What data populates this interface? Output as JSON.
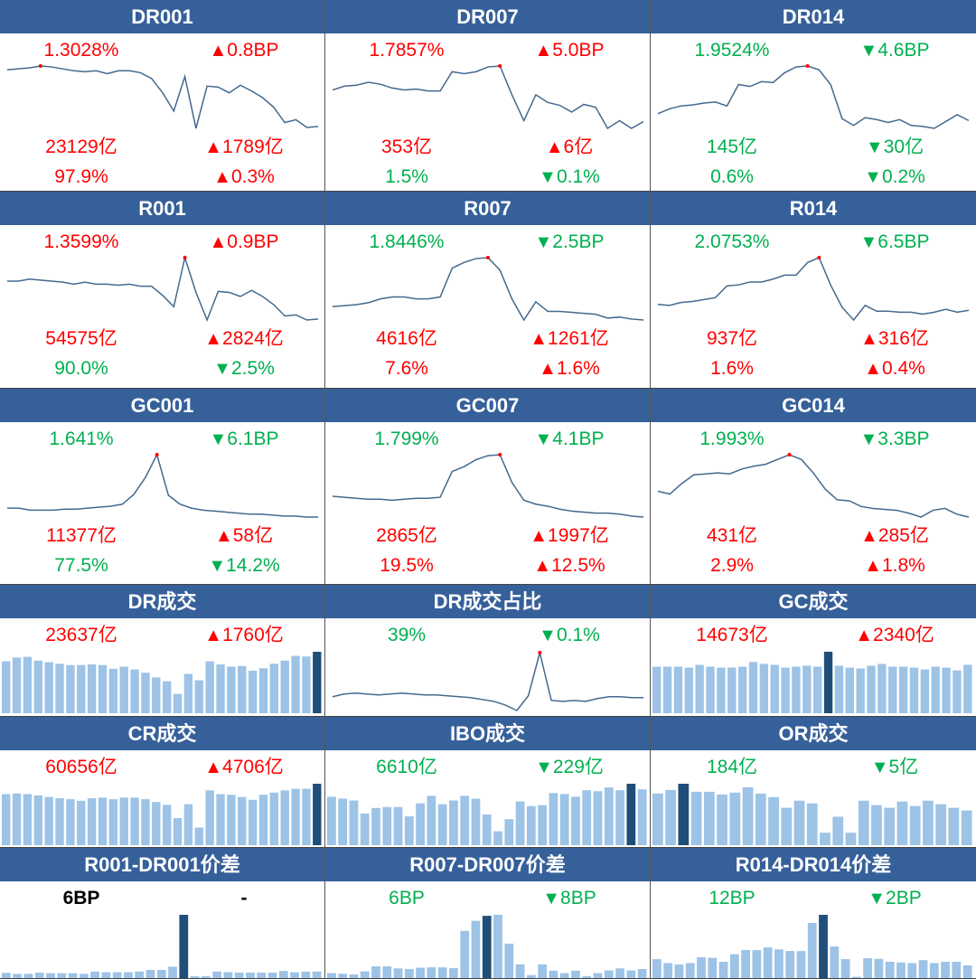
{
  "colors": {
    "header": "#36609a",
    "up": "#ff0000",
    "down": "#00b050",
    "line": "#44698f",
    "bar": "#9dc3e6",
    "bar_highlight": "#1f4e79",
    "marker": "#ff0000"
  },
  "panels": [
    {
      "title": "DR001",
      "type": "line",
      "rows": [
        {
          "left": "1.3028%",
          "lc": "up",
          "arrow": "▲",
          "right": "0.8BP",
          "rc": "up"
        },
        {
          "left": "23129亿",
          "lc": "up",
          "arrow": "▲",
          "right": "1789亿",
          "rc": "up"
        },
        {
          "left": "97.9%",
          "lc": "up",
          "arrow": "▲",
          "right": "0.3%",
          "rc": "up"
        }
      ]
    },
    {
      "title": "DR007",
      "type": "line",
      "rows": [
        {
          "left": "1.7857%",
          "lc": "up",
          "arrow": "▲",
          "right": "5.0BP",
          "rc": "up"
        },
        {
          "left": "353亿",
          "lc": "up",
          "arrow": "▲",
          "right": "6亿",
          "rc": "up"
        },
        {
          "left": "1.5%",
          "lc": "down",
          "arrow": "▼",
          "right": "0.1%",
          "rc": "down"
        }
      ]
    },
    {
      "title": "DR014",
      "type": "line",
      "rows": [
        {
          "left": "1.9524%",
          "lc": "down",
          "arrow": "▼",
          "right": "4.6BP",
          "rc": "down"
        },
        {
          "left": "145亿",
          "lc": "down",
          "arrow": "▼",
          "right": "30亿",
          "rc": "down"
        },
        {
          "left": "0.6%",
          "lc": "down",
          "arrow": "▼",
          "right": "0.2%",
          "rc": "down"
        }
      ]
    },
    {
      "title": "R001",
      "type": "line",
      "rows": [
        {
          "left": "1.3599%",
          "lc": "up",
          "arrow": "▲",
          "right": "0.9BP",
          "rc": "up"
        },
        {
          "left": "54575亿",
          "lc": "up",
          "arrow": "▲",
          "right": "2824亿",
          "rc": "up"
        },
        {
          "left": "90.0%",
          "lc": "down",
          "arrow": "▼",
          "right": "2.5%",
          "rc": "down"
        }
      ]
    },
    {
      "title": "R007",
      "type": "line",
      "rows": [
        {
          "left": "1.8446%",
          "lc": "down",
          "arrow": "▼",
          "right": "2.5BP",
          "rc": "down"
        },
        {
          "left": "4616亿",
          "lc": "up",
          "arrow": "▲",
          "right": "1261亿",
          "rc": "up"
        },
        {
          "left": "7.6%",
          "lc": "up",
          "arrow": "▲",
          "right": "1.6%",
          "rc": "up"
        }
      ]
    },
    {
      "title": "R014",
      "type": "line",
      "rows": [
        {
          "left": "2.0753%",
          "lc": "down",
          "arrow": "▼",
          "right": "6.5BP",
          "rc": "down"
        },
        {
          "left": "937亿",
          "lc": "up",
          "arrow": "▲",
          "right": "316亿",
          "rc": "up"
        },
        {
          "left": "1.6%",
          "lc": "up",
          "arrow": "▲",
          "right": "0.4%",
          "rc": "up"
        }
      ]
    },
    {
      "title": "GC001",
      "type": "line",
      "rows": [
        {
          "left": "1.641%",
          "lc": "down",
          "arrow": "▼",
          "right": "6.1BP",
          "rc": "down"
        },
        {
          "left": "11377亿",
          "lc": "up",
          "arrow": "▲",
          "right": "58亿",
          "rc": "up"
        },
        {
          "left": "77.5%",
          "lc": "down",
          "arrow": "▼",
          "right": "14.2%",
          "rc": "down"
        }
      ]
    },
    {
      "title": "GC007",
      "type": "line",
      "rows": [
        {
          "left": "1.799%",
          "lc": "down",
          "arrow": "▼",
          "right": "4.1BP",
          "rc": "down"
        },
        {
          "left": "2865亿",
          "lc": "up",
          "arrow": "▲",
          "right": "1997亿",
          "rc": "up"
        },
        {
          "left": "19.5%",
          "lc": "up",
          "arrow": "▲",
          "right": "12.5%",
          "rc": "up"
        }
      ]
    },
    {
      "title": "GC014",
      "type": "line",
      "rows": [
        {
          "left": "1.993%",
          "lc": "down",
          "arrow": "▼",
          "right": "3.3BP",
          "rc": "down"
        },
        {
          "left": "431亿",
          "lc": "up",
          "arrow": "▲",
          "right": "285亿",
          "rc": "up"
        },
        {
          "left": "2.9%",
          "lc": "up",
          "arrow": "▲",
          "right": "1.8%",
          "rc": "up"
        }
      ]
    },
    {
      "title": "DR成交",
      "type": "bar",
      "rows": [
        {
          "left": "23637亿",
          "lc": "up",
          "arrow": "▲",
          "right": "1760亿",
          "rc": "up"
        }
      ]
    },
    {
      "title": "DR成交占比",
      "type": "line",
      "rows": [
        {
          "left": "39%",
          "lc": "down",
          "arrow": "▼",
          "right": "0.1%",
          "rc": "down"
        }
      ]
    },
    {
      "title": "GC成交",
      "type": "bar",
      "rows": [
        {
          "left": "14673亿",
          "lc": "up",
          "arrow": "▲",
          "right": "2340亿",
          "rc": "up"
        }
      ]
    },
    {
      "title": "CR成交",
      "type": "bar",
      "rows": [
        {
          "left": "60656亿",
          "lc": "up",
          "arrow": "▲",
          "right": "4706亿",
          "rc": "up"
        }
      ]
    },
    {
      "title": "IBO成交",
      "type": "bar",
      "rows": [
        {
          "left": "6610亿",
          "lc": "down",
          "arrow": "▼",
          "right": "229亿",
          "rc": "down"
        }
      ]
    },
    {
      "title": "OR成交",
      "type": "bar",
      "rows": [
        {
          "left": "184亿",
          "lc": "down",
          "arrow": "▼",
          "right": "5亿",
          "rc": "down"
        }
      ]
    },
    {
      "title": "R001-DR001价差",
      "type": "bar",
      "rows": [
        {
          "left": "6BP",
          "lc": "neutral",
          "arrow": "",
          "right": "-",
          "rc": "neutral"
        }
      ]
    },
    {
      "title": "R007-DR007价差",
      "type": "bar",
      "rows": [
        {
          "left": "6BP",
          "lc": "down",
          "arrow": "▼",
          "right": "8BP",
          "rc": "down"
        }
      ]
    },
    {
      "title": "R014-DR014价差",
      "type": "bar",
      "rows": [
        {
          "left": "12BP",
          "lc": "down",
          "arrow": "▼",
          "right": "2BP",
          "rc": "down"
        }
      ]
    }
  ],
  "chart_data": [
    {
      "type": "line",
      "title": "DR001",
      "values": [
        66,
        67,
        68,
        70,
        69,
        67,
        65,
        64,
        65,
        62,
        65,
        65,
        63,
        57,
        42,
        23,
        59,
        5,
        49,
        48,
        42,
        50,
        44,
        37,
        27,
        11,
        14,
        6,
        7
      ]
    },
    {
      "type": "line",
      "title": "DR007",
      "values": [
        45,
        49,
        50,
        53,
        51,
        47,
        45,
        46,
        44,
        44,
        64,
        62,
        64,
        69,
        70,
        40,
        13,
        40,
        32,
        29,
        22,
        30,
        27,
        5,
        13,
        5,
        12
      ]
    },
    {
      "type": "line",
      "title": "DR014",
      "values": [
        20,
        25,
        28,
        29,
        31,
        32,
        28,
        50,
        48,
        53,
        52,
        62,
        68,
        69,
        65,
        50,
        15,
        8,
        16,
        14,
        11,
        14,
        8,
        7,
        5,
        12,
        19,
        13
      ]
    },
    {
      "type": "line",
      "title": "R001",
      "values": [
        43,
        43,
        45,
        44,
        43,
        42,
        40,
        42,
        40,
        40,
        39,
        40,
        38,
        38,
        29,
        18,
        66,
        32,
        5,
        33,
        32,
        28,
        34,
        28,
        20,
        9,
        10,
        5,
        6
      ]
    },
    {
      "type": "line",
      "title": "R007",
      "values": [
        19,
        20,
        21,
        23,
        27,
        29,
        29,
        27,
        27,
        29,
        59,
        65,
        69,
        70,
        57,
        27,
        5,
        24,
        14,
        14,
        13,
        12,
        11,
        7,
        8,
        6,
        5
      ]
    },
    {
      "type": "line",
      "title": "R014",
      "values": [
        21,
        20,
        23,
        24,
        26,
        28,
        40,
        41,
        44,
        44,
        47,
        51,
        51,
        64,
        69,
        41,
        18,
        5,
        20,
        14,
        14,
        13,
        13,
        11,
        13,
        16,
        13,
        15
      ]
    },
    {
      "type": "line",
      "title": "GC001",
      "values": [
        14,
        14,
        12,
        12,
        12,
        13,
        13,
        14,
        15,
        16,
        18,
        28,
        45,
        68,
        27,
        18,
        14,
        12,
        11,
        10,
        9,
        8,
        8,
        7,
        6,
        6,
        5,
        5
      ]
    },
    {
      "type": "line",
      "title": "GC007",
      "values": [
        26,
        25,
        24,
        23,
        23,
        22,
        23,
        24,
        24,
        25,
        51,
        56,
        63,
        67,
        68,
        40,
        22,
        18,
        16,
        13,
        11,
        10,
        9,
        9,
        8,
        6,
        5
      ]
    },
    {
      "type": "line",
      "title": "GC014",
      "values": [
        32,
        29,
        40,
        49,
        50,
        51,
        50,
        55,
        58,
        60,
        65,
        70,
        65,
        51,
        34,
        23,
        22,
        16,
        14,
        13,
        12,
        9,
        5,
        12,
        14,
        8,
        5
      ]
    },
    {
      "type": "bar",
      "title": "DR成交",
      "highlight": 29,
      "values": [
        164,
        176,
        178,
        166,
        161,
        156,
        152,
        152,
        154,
        152,
        140,
        147,
        138,
        128,
        113,
        101,
        61,
        124,
        104,
        164,
        154,
        147,
        149,
        134,
        142,
        156,
        166,
        181,
        179,
        194
      ]
    },
    {
      "type": "line",
      "title": "DR成交占比",
      "values": [
        20,
        23,
        24,
        23,
        22,
        23,
        24,
        23,
        22,
        22,
        21,
        20,
        19,
        17,
        15,
        11,
        5,
        21,
        68,
        16,
        15,
        16,
        15,
        18,
        20,
        20,
        19,
        19
      ]
    },
    {
      "type": "bar",
      "title": "GC成交",
      "highlight": 16,
      "values": [
        50,
        50,
        50,
        49,
        52,
        50,
        49,
        49,
        50,
        55,
        53,
        52,
        49,
        50,
        51,
        50,
        66,
        51,
        49,
        48,
        51,
        53,
        50,
        50,
        49,
        47,
        50,
        49,
        46,
        52
      ]
    },
    {
      "type": "bar",
      "title": "CR成交",
      "highlight": 29,
      "values": [
        162,
        164,
        162,
        158,
        153,
        149,
        146,
        141,
        149,
        151,
        146,
        151,
        151,
        146,
        137,
        128,
        86,
        130,
        56,
        174,
        162,
        160,
        153,
        144,
        160,
        167,
        174,
        179,
        179,
        195
      ]
    },
    {
      "type": "bar",
      "title": "IBO成交",
      "highlight": 27,
      "values": [
        52,
        50,
        48,
        34,
        40,
        41,
        41,
        31,
        45,
        53,
        44,
        48,
        53,
        50,
        33,
        15,
        28,
        47,
        42,
        43,
        56,
        55,
        52,
        59,
        58,
        62,
        59,
        66,
        60
      ]
    },
    {
      "type": "bar",
      "title": "OR成交",
      "highlight": 2,
      "values": [
        58,
        62,
        69,
        60,
        60,
        57,
        59,
        65,
        58,
        54,
        42,
        50,
        47,
        14,
        32,
        14,
        50,
        45,
        42,
        49,
        44,
        50,
        46,
        42,
        39
      ]
    },
    {
      "type": "bar",
      "title": "R001-DR001价差",
      "highlight": 16,
      "values": [
        16,
        13,
        13,
        17,
        15,
        15,
        15,
        13,
        20,
        18,
        18,
        18,
        20,
        25,
        25,
        35,
        194,
        6,
        6,
        20,
        18,
        17,
        17,
        17,
        17,
        22,
        18,
        20,
        20
      ]
    },
    {
      "type": "bar",
      "title": "R007-DR007价差",
      "highlight": 14,
      "values": [
        15,
        13,
        11,
        20,
        35,
        35,
        29,
        27,
        31,
        32,
        32,
        30,
        141,
        171,
        186,
        189,
        103,
        41,
        9,
        41,
        22,
        15,
        22,
        6,
        15,
        23,
        29,
        23,
        27
      ]
    },
    {
      "type": "bar",
      "title": "R014-DR014价差",
      "highlight": 15,
      "values": [
        58,
        46,
        42,
        46,
        64,
        62,
        50,
        73,
        86,
        86,
        94,
        88,
        83,
        83,
        169,
        194,
        97,
        58,
        4,
        61,
        59,
        50,
        48,
        46,
        55,
        46,
        50,
        50,
        39
      ]
    }
  ]
}
